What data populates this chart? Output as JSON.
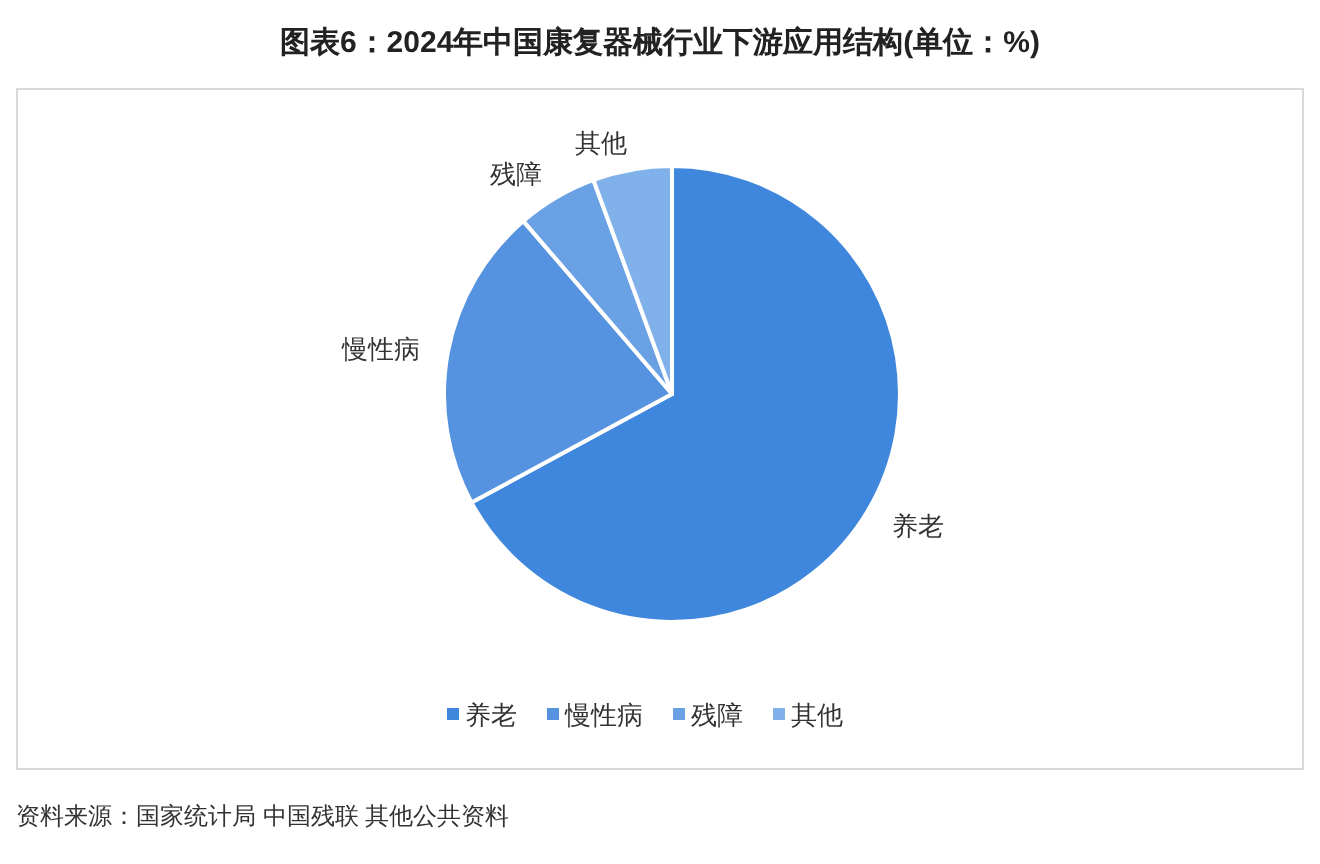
{
  "chart_data": {
    "type": "pie",
    "title": "图表6：2024年中国康复器械行业下游应用结构(单位：%)",
    "categories": [
      "养老",
      "慢性病",
      "残障",
      "其他"
    ],
    "values": [
      67.1,
      21.6,
      5.7,
      5.6
    ],
    "colors": [
      "#3f86dd",
      "#5592e0",
      "#6aa0e4",
      "#80b1ea"
    ],
    "legend": "bottom",
    "annotations": [
      "资料来源：国家统计局 中国残联 其他公共资料"
    ]
  }
}
